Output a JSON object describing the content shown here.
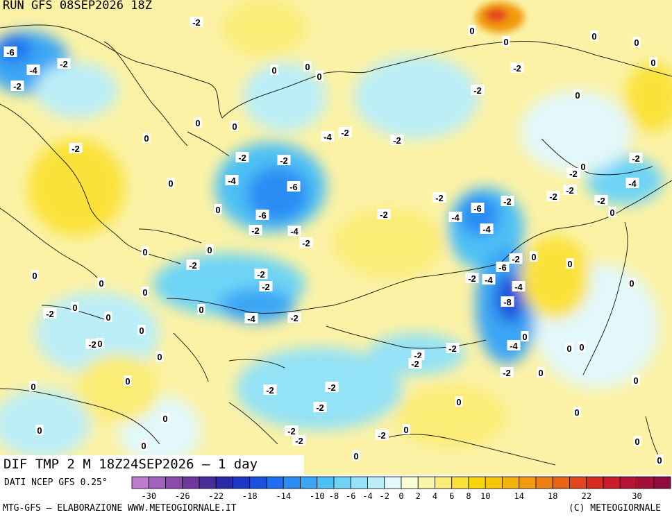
{
  "header": {
    "run_title": "RUN GFS 08SEP2026 18Z"
  },
  "map": {
    "subtitle": "DIF TMP 2 M 18Z24SEP2026 – 1 day",
    "value_labels": [
      {
        "text": "-2",
        "lon": 283,
        "lat": 32
      },
      {
        "text": "-6",
        "lon": 15,
        "lat": 75
      },
      {
        "text": "-4",
        "lon": 48,
        "lat": 101
      },
      {
        "text": "-2",
        "lon": 92,
        "lat": 92
      },
      {
        "text": "-2",
        "lon": 25,
        "lat": 124
      },
      {
        "text": "0",
        "lon": 395,
        "lat": 101
      },
      {
        "text": "0",
        "lon": 443,
        "lat": 96
      },
      {
        "text": "0",
        "lon": 460,
        "lat": 110
      },
      {
        "text": "0",
        "lon": 680,
        "lat": 44
      },
      {
        "text": "0",
        "lon": 729,
        "lat": 60
      },
      {
        "text": "0",
        "lon": 856,
        "lat": 52
      },
      {
        "text": "0",
        "lon": 917,
        "lat": 61
      },
      {
        "text": "0",
        "lon": 941,
        "lat": 90
      },
      {
        "text": "-2",
        "lon": 745,
        "lat": 98
      },
      {
        "text": "-2",
        "lon": 688,
        "lat": 130
      },
      {
        "text": "0",
        "lon": 832,
        "lat": 137
      },
      {
        "text": "0",
        "lon": 285,
        "lat": 177
      },
      {
        "text": "0",
        "lon": 338,
        "lat": 182
      },
      {
        "text": "-4",
        "lon": 472,
        "lat": 197
      },
      {
        "text": "-2",
        "lon": 497,
        "lat": 191
      },
      {
        "text": "-2",
        "lon": 572,
        "lat": 202
      },
      {
        "text": "0",
        "lon": 211,
        "lat": 199
      },
      {
        "text": "-2",
        "lon": 109,
        "lat": 214
      },
      {
        "text": "-2",
        "lon": 349,
        "lat": 227
      },
      {
        "text": "-2",
        "lon": 409,
        "lat": 231
      },
      {
        "text": "-4",
        "lon": 334,
        "lat": 260
      },
      {
        "text": "-6",
        "lon": 423,
        "lat": 269
      },
      {
        "text": "0",
        "lon": 246,
        "lat": 264
      },
      {
        "text": "0",
        "lon": 314,
        "lat": 302
      },
      {
        "text": "-6",
        "lon": 378,
        "lat": 310
      },
      {
        "text": "-2",
        "lon": 368,
        "lat": 332
      },
      {
        "text": "-4",
        "lon": 424,
        "lat": 333
      },
      {
        "text": "-2",
        "lon": 441,
        "lat": 350
      },
      {
        "text": "-2",
        "lon": 553,
        "lat": 309
      },
      {
        "text": "-2",
        "lon": 633,
        "lat": 285
      },
      {
        "text": "-6",
        "lon": 688,
        "lat": 300
      },
      {
        "text": "-4",
        "lon": 656,
        "lat": 313
      },
      {
        "text": "-2",
        "lon": 731,
        "lat": 290
      },
      {
        "text": "-4",
        "lon": 701,
        "lat": 330
      },
      {
        "text": "-2",
        "lon": 916,
        "lat": 228
      },
      {
        "text": "0",
        "lon": 840,
        "lat": 240
      },
      {
        "text": "-2",
        "lon": 826,
        "lat": 250
      },
      {
        "text": "-4",
        "lon": 911,
        "lat": 264
      },
      {
        "text": "-2",
        "lon": 821,
        "lat": 274
      },
      {
        "text": "-2",
        "lon": 797,
        "lat": 283
      },
      {
        "text": "-2",
        "lon": 866,
        "lat": 289
      },
      {
        "text": "0",
        "lon": 882,
        "lat": 306
      },
      {
        "text": "0",
        "lon": 302,
        "lat": 360
      },
      {
        "text": "0",
        "lon": 209,
        "lat": 363
      },
      {
        "text": "-2",
        "lon": 278,
        "lat": 382
      },
      {
        "text": "-2",
        "lon": 376,
        "lat": 395
      },
      {
        "text": "-2",
        "lon": 383,
        "lat": 413
      },
      {
        "text": "-2",
        "lon": 743,
        "lat": 373
      },
      {
        "text": "-6",
        "lon": 724,
        "lat": 385
      },
      {
        "text": "0",
        "lon": 769,
        "lat": 370
      },
      {
        "text": "0",
        "lon": 821,
        "lat": 380
      },
      {
        "text": "-2",
        "lon": 680,
        "lat": 401
      },
      {
        "text": "-4",
        "lon": 704,
        "lat": 403
      },
      {
        "text": "-4",
        "lon": 747,
        "lat": 413
      },
      {
        "text": "-8",
        "lon": 731,
        "lat": 435
      },
      {
        "text": "0",
        "lon": 910,
        "lat": 408
      },
      {
        "text": "0",
        "lon": 50,
        "lat": 397
      },
      {
        "text": "0",
        "lon": 146,
        "lat": 408
      },
      {
        "text": "0",
        "lon": 209,
        "lat": 421
      },
      {
        "text": "0",
        "lon": 108,
        "lat": 443
      },
      {
        "text": "0",
        "lon": 290,
        "lat": 446
      },
      {
        "text": "-2",
        "lon": 72,
        "lat": 452
      },
      {
        "text": "0",
        "lon": 156,
        "lat": 457
      },
      {
        "text": "-4",
        "lon": 362,
        "lat": 459
      },
      {
        "text": "-2",
        "lon": 424,
        "lat": 458
      },
      {
        "text": "0",
        "lon": 204,
        "lat": 476
      },
      {
        "text": "-2",
        "lon": 133,
        "lat": 496
      },
      {
        "text": "0",
        "lon": 144,
        "lat": 495
      },
      {
        "text": "0",
        "lon": 230,
        "lat": 514
      },
      {
        "text": "0",
        "lon": 756,
        "lat": 485
      },
      {
        "text": "-4",
        "lon": 740,
        "lat": 498
      },
      {
        "text": "-2",
        "lon": 652,
        "lat": 502
      },
      {
        "text": "0",
        "lon": 820,
        "lat": 502
      },
      {
        "text": "0",
        "lon": 838,
        "lat": 500
      },
      {
        "text": "-2",
        "lon": 602,
        "lat": 512
      },
      {
        "text": "-2",
        "lon": 598,
        "lat": 524
      },
      {
        "text": "-2",
        "lon": 730,
        "lat": 537
      },
      {
        "text": "0",
        "lon": 779,
        "lat": 537
      },
      {
        "text": "0",
        "lon": 184,
        "lat": 549
      },
      {
        "text": "0",
        "lon": 48,
        "lat": 557
      },
      {
        "text": "0",
        "lon": 916,
        "lat": 548
      },
      {
        "text": "-2",
        "lon": 389,
        "lat": 562
      },
      {
        "text": "-2",
        "lon": 478,
        "lat": 558
      },
      {
        "text": "-2",
        "lon": 461,
        "lat": 587
      },
      {
        "text": "0",
        "lon": 661,
        "lat": 579
      },
      {
        "text": "0",
        "lon": 831,
        "lat": 594
      },
      {
        "text": "0",
        "lon": 238,
        "lat": 603
      },
      {
        "text": "0",
        "lon": 57,
        "lat": 620
      },
      {
        "text": "-2",
        "lon": 420,
        "lat": 621
      },
      {
        "text": "-2",
        "lon": 431,
        "lat": 635
      },
      {
        "text": "-2",
        "lon": 550,
        "lat": 627
      },
      {
        "text": "0",
        "lon": 585,
        "lat": 619
      },
      {
        "text": "0",
        "lon": 207,
        "lat": 642
      },
      {
        "text": "0",
        "lon": 918,
        "lat": 636
      },
      {
        "text": "0",
        "lon": 513,
        "lat": 657
      },
      {
        "text": "0",
        "lon": 950,
        "lat": 663
      }
    ]
  },
  "legend": {
    "data_source": "DATI NCEP GFS 0.25°",
    "tick_labels": [
      "-30",
      "-26",
      "-22",
      "-18",
      "-14",
      "-10",
      "-8",
      "-6",
      "-4",
      "-2",
      "0",
      "2",
      "4",
      "6",
      "8",
      "10",
      "14",
      "18",
      "22",
      "30"
    ],
    "colors": [
      "#c07ad0",
      "#a462c0",
      "#8a4aae",
      "#6e389c",
      "#4a2c96",
      "#2a2aa8",
      "#1e36c4",
      "#1c50dc",
      "#1e6ef0",
      "#2a8cf5",
      "#3aa6f5",
      "#4ec0f5",
      "#6ed4f5",
      "#94e2f5",
      "#bceef7",
      "#e2f8fa",
      "#fafcd6",
      "#fbf5a8",
      "#fbec76",
      "#fbe23a",
      "#f8d60a",
      "#f6c60a",
      "#f4b20c",
      "#f29a10",
      "#ee8014",
      "#ea6418",
      "#e2461c",
      "#d62c22",
      "#c81c2a",
      "#b41432",
      "#a2103a",
      "#900c40"
    ]
  },
  "footer": {
    "left": "MTG-GFS – ELABORAZIONE WWW.METEOGIORNALE.IT",
    "right": "(C) METEOGIORNALE"
  }
}
